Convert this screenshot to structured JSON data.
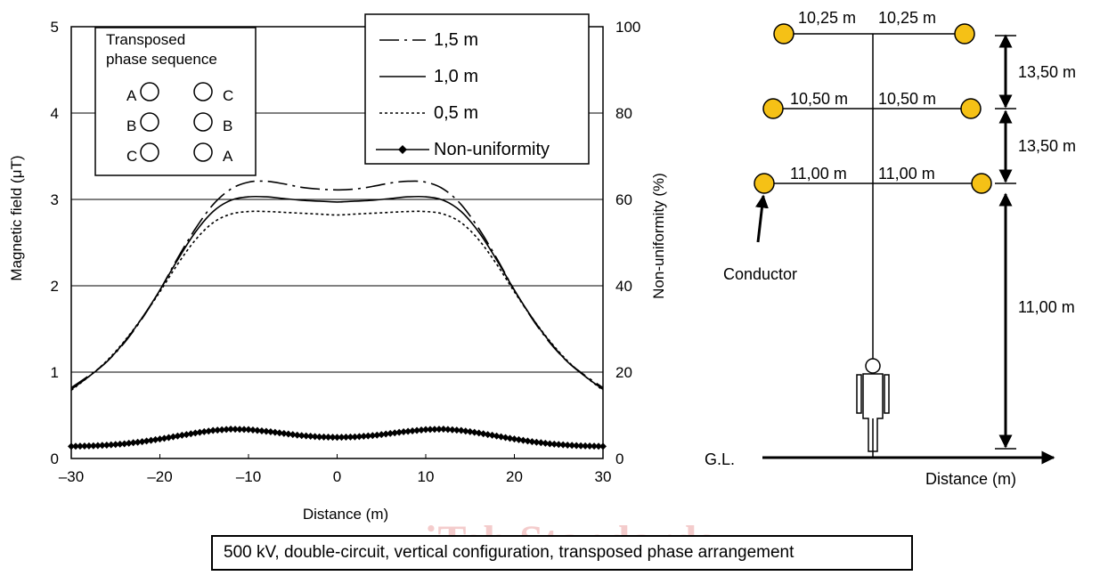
{
  "chart_data": [
    {
      "type": "line",
      "xlabel": "Distance (m)",
      "ylabel": "Magnetic field  (μT)",
      "y2label": "Non-uniformity  (%)",
      "xlim": [
        -30,
        30
      ],
      "ylim": [
        0,
        5
      ],
      "y2lim": [
        0,
        100
      ],
      "x_ticks": [
        "–30",
        "–20",
        "–10",
        "0",
        "10",
        "20",
        "30"
      ],
      "y_ticks": [
        "0",
        "1",
        "2",
        "3",
        "4",
        "5"
      ],
      "y2_ticks": [
        "0",
        "20",
        "40",
        "60",
        "80",
        "100"
      ],
      "grid": "horizontal",
      "legend_position": "top-right",
      "phase_box": {
        "title_lines": [
          "Transposed",
          "phase sequence"
        ],
        "left_phases": [
          "A",
          "B",
          "C"
        ],
        "right_phases": [
          "C",
          "B",
          "A"
        ]
      },
      "x": [
        -30,
        -28,
        -26,
        -24,
        -22,
        -20,
        -18,
        -16,
        -14,
        -12,
        -10,
        -8,
        -6,
        -4,
        -2,
        0,
        2,
        4,
        6,
        8,
        10,
        12,
        14,
        16,
        18,
        20,
        22,
        24,
        26,
        28,
        30
      ],
      "series": [
        {
          "name": "1,5 m",
          "axis": "left",
          "style": "dash-dot",
          "values": [
            0.82,
            0.96,
            1.12,
            1.34,
            1.62,
            1.95,
            2.32,
            2.66,
            2.94,
            3.12,
            3.2,
            3.21,
            3.18,
            3.14,
            3.12,
            3.11,
            3.12,
            3.15,
            3.19,
            3.21,
            3.2,
            3.12,
            2.94,
            2.66,
            2.32,
            1.95,
            1.62,
            1.34,
            1.12,
            0.96,
            0.82
          ]
        },
        {
          "name": "1,0 m",
          "axis": "left",
          "style": "solid",
          "values": [
            0.8,
            0.95,
            1.12,
            1.35,
            1.63,
            1.95,
            2.3,
            2.62,
            2.86,
            2.99,
            3.03,
            3.03,
            3.01,
            2.99,
            2.98,
            2.97,
            2.98,
            2.99,
            3.01,
            3.03,
            3.03,
            2.99,
            2.86,
            2.62,
            2.3,
            1.95,
            1.63,
            1.35,
            1.12,
            0.95,
            0.8
          ]
        },
        {
          "name": "0,5 m",
          "axis": "left",
          "style": "dotted",
          "values": [
            0.79,
            0.95,
            1.13,
            1.36,
            1.63,
            1.93,
            2.25,
            2.53,
            2.73,
            2.83,
            2.86,
            2.86,
            2.85,
            2.84,
            2.83,
            2.82,
            2.83,
            2.84,
            2.85,
            2.86,
            2.86,
            2.83,
            2.73,
            2.53,
            2.25,
            1.93,
            1.63,
            1.36,
            1.13,
            0.95,
            0.79
          ]
        },
        {
          "name": "Non-uniformity",
          "axis": "right",
          "style": "diamond",
          "values": [
            2.8,
            2.9,
            3.1,
            3.4,
            3.9,
            4.5,
            5.2,
            5.9,
            6.5,
            6.8,
            6.7,
            6.3,
            5.8,
            5.3,
            5.0,
            4.9,
            5.0,
            5.3,
            5.8,
            6.3,
            6.7,
            6.8,
            6.5,
            5.9,
            5.2,
            4.5,
            3.9,
            3.4,
            3.1,
            2.9,
            2.8
          ]
        }
      ]
    }
  ],
  "diagram": {
    "spans": [
      "10,25 m",
      "10,25 m",
      "10,50 m",
      "10,50 m",
      "11,00 m",
      "11,00 m"
    ],
    "vertical": [
      "13,50 m",
      "13,50 m",
      "11,00 m"
    ],
    "conductor_label": "Conductor",
    "ground_label": "G.L.",
    "axis_label": "Distance (m)",
    "conductor_color": "#f5c116"
  },
  "caption": "500 kV, double-circuit, vertical configuration, transposed phase arrangement",
  "watermark": "iTeh Standards"
}
